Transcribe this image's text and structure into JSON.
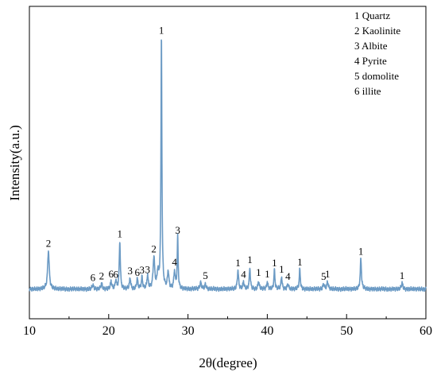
{
  "chart_data": {
    "type": "line",
    "xlabel": "2θ(degree)",
    "ylabel": "Intensity(a.u.)",
    "xlim": [
      10,
      60
    ],
    "xticks": [
      10,
      20,
      30,
      40,
      50,
      60
    ],
    "ylim": [
      0,
      1000
    ],
    "y_tick_labels_shown": false,
    "grid": false,
    "legend_position": "top-right",
    "legend_entries": [
      "1 Quartz",
      "2 Kaolinite",
      "3 Albite",
      "4 Pyrite",
      "5 domolite",
      "6 illite"
    ],
    "line_color": "#6B9AC4",
    "baseline": 95,
    "peaks": [
      {
        "x": 12.4,
        "y": 218,
        "w": 0.12
      },
      {
        "x": 18.0,
        "y": 108,
        "w": 0.1
      },
      {
        "x": 19.1,
        "y": 113,
        "w": 0.1
      },
      {
        "x": 20.3,
        "y": 120,
        "w": 0.09
      },
      {
        "x": 20.9,
        "y": 123,
        "w": 0.09
      },
      {
        "x": 21.4,
        "y": 248,
        "w": 0.08
      },
      {
        "x": 22.7,
        "y": 130,
        "w": 0.09
      },
      {
        "x": 23.6,
        "y": 128,
        "w": 0.09
      },
      {
        "x": 24.2,
        "y": 132,
        "w": 0.09
      },
      {
        "x": 24.9,
        "y": 138,
        "w": 0.09
      },
      {
        "x": 25.7,
        "y": 195,
        "w": 0.12
      },
      {
        "x": 26.2,
        "y": 145,
        "w": 0.1
      },
      {
        "x": 26.65,
        "y": 900,
        "w": 0.07
      },
      {
        "x": 27.5,
        "y": 150,
        "w": 0.1
      },
      {
        "x": 28.3,
        "y": 150,
        "w": 0.1
      },
      {
        "x": 28.7,
        "y": 260,
        "w": 0.07
      },
      {
        "x": 31.6,
        "y": 115,
        "w": 0.12
      },
      {
        "x": 32.2,
        "y": 110,
        "w": 0.1
      },
      {
        "x": 36.3,
        "y": 155,
        "w": 0.09
      },
      {
        "x": 37.0,
        "y": 118,
        "w": 0.09
      },
      {
        "x": 37.8,
        "y": 163,
        "w": 0.08
      },
      {
        "x": 38.9,
        "y": 120,
        "w": 0.09
      },
      {
        "x": 40.0,
        "y": 118,
        "w": 0.09
      },
      {
        "x": 40.9,
        "y": 155,
        "w": 0.08
      },
      {
        "x": 41.8,
        "y": 135,
        "w": 0.08
      },
      {
        "x": 42.6,
        "y": 112,
        "w": 0.09
      },
      {
        "x": 44.1,
        "y": 158,
        "w": 0.08
      },
      {
        "x": 47.1,
        "y": 112,
        "w": 0.1
      },
      {
        "x": 47.6,
        "y": 118,
        "w": 0.1
      },
      {
        "x": 51.8,
        "y": 192,
        "w": 0.09
      },
      {
        "x": 57.0,
        "y": 115,
        "w": 0.1
      }
    ],
    "peak_labels": [
      {
        "x": 12.4,
        "y": 218,
        "label": "2"
      },
      {
        "x": 18.0,
        "y": 108,
        "label": "6"
      },
      {
        "x": 19.1,
        "y": 113,
        "label": "2"
      },
      {
        "x": 20.3,
        "y": 120,
        "label": "6"
      },
      {
        "x": 20.9,
        "y": 118,
        "label": "6"
      },
      {
        "x": 21.4,
        "y": 248,
        "label": "1"
      },
      {
        "x": 22.7,
        "y": 130,
        "label": "3"
      },
      {
        "x": 23.6,
        "y": 125,
        "label": "6"
      },
      {
        "x": 24.2,
        "y": 132,
        "label": "3"
      },
      {
        "x": 24.9,
        "y": 133,
        "label": "3"
      },
      {
        "x": 25.7,
        "y": 200,
        "label": "2"
      },
      {
        "x": 26.65,
        "y": 900,
        "label": "1"
      },
      {
        "x": 28.3,
        "y": 158,
        "label": "4"
      },
      {
        "x": 28.7,
        "y": 260,
        "label": "3"
      },
      {
        "x": 32.2,
        "y": 115,
        "label": "5"
      },
      {
        "x": 36.3,
        "y": 155,
        "label": "1"
      },
      {
        "x": 37.0,
        "y": 118,
        "label": "4"
      },
      {
        "x": 37.8,
        "y": 165,
        "label": "1"
      },
      {
        "x": 38.9,
        "y": 125,
        "label": "1"
      },
      {
        "x": 40.0,
        "y": 120,
        "label": "1"
      },
      {
        "x": 40.9,
        "y": 155,
        "label": "1"
      },
      {
        "x": 41.8,
        "y": 135,
        "label": "1"
      },
      {
        "x": 42.6,
        "y": 112,
        "label": "4"
      },
      {
        "x": 44.1,
        "y": 158,
        "label": "1"
      },
      {
        "x": 47.1,
        "y": 112,
        "label": "5"
      },
      {
        "x": 47.6,
        "y": 120,
        "label": "1"
      },
      {
        "x": 51.8,
        "y": 192,
        "label": "1"
      },
      {
        "x": 57.0,
        "y": 115,
        "label": "1"
      }
    ]
  }
}
